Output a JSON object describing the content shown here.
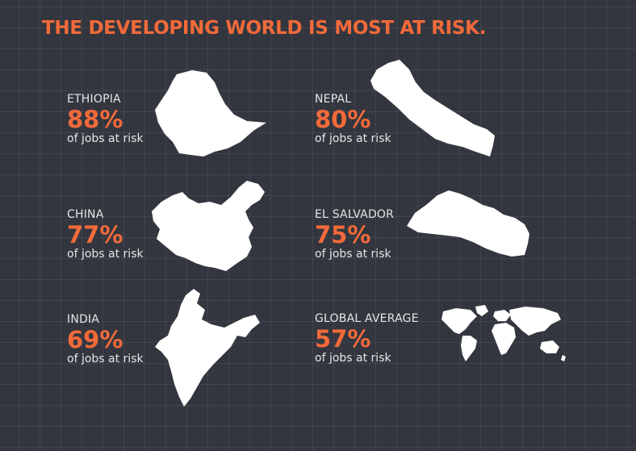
{
  "title": "THE DEVELOPING WORLD IS MOST AT RISK.",
  "colors": {
    "background": "#33363e",
    "accent": "#f26a3a",
    "text": "#e6e6e6",
    "map": "#ffffff"
  },
  "stats": [
    {
      "country": "ETHIOPIA",
      "percent": "88%",
      "desc": "of jobs at risk",
      "icon": "ethiopia-map-icon"
    },
    {
      "country": "NEPAL",
      "percent": "80%",
      "desc": "of jobs at risk",
      "icon": "nepal-map-icon"
    },
    {
      "country": "CHINA",
      "percent": "77%",
      "desc": "of jobs at risk",
      "icon": "china-map-icon"
    },
    {
      "country": "EL SALVADOR",
      "percent": "75%",
      "desc": "of jobs at risk",
      "icon": "el-salvador-map-icon"
    },
    {
      "country": "INDIA",
      "percent": "69%",
      "desc": "of jobs at risk",
      "icon": "india-map-icon"
    },
    {
      "country": "GLOBAL AVERAGE",
      "percent": "57%",
      "desc": "of jobs at risk",
      "icon": "world-map-icon"
    }
  ]
}
